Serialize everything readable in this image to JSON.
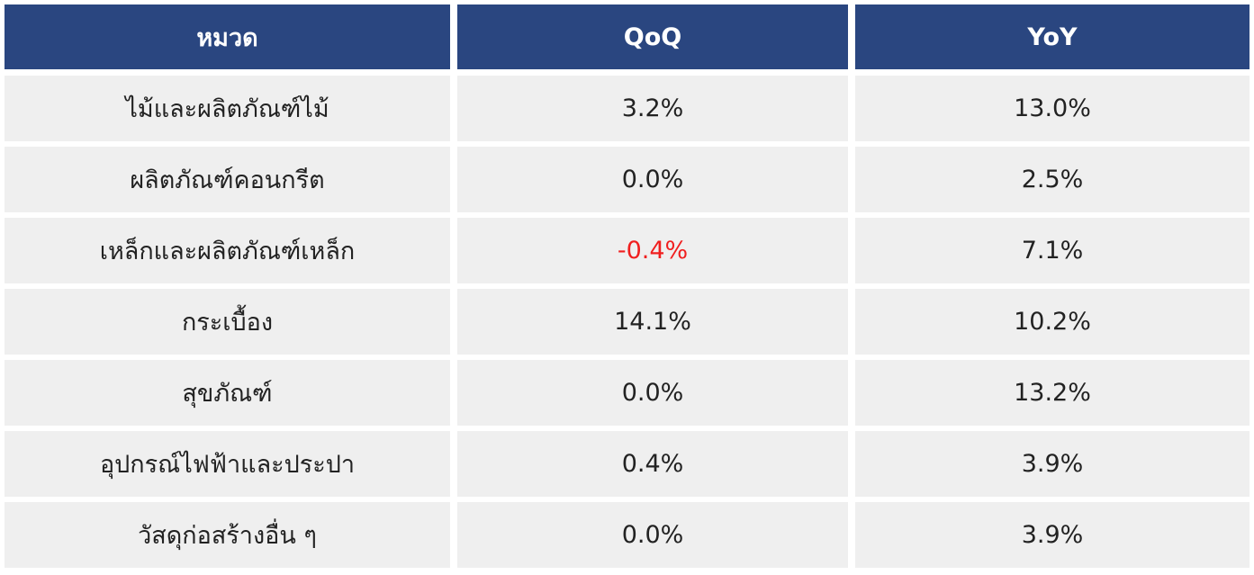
{
  "table": {
    "header": [
      "หมวด",
      "QoQ",
      "YoY"
    ],
    "rows": [
      [
        "ไม้และผลิตภัณฑ์ไม้",
        "3.2%",
        "13.0%"
      ],
      [
        "ผลิตภัณฑ์คอนกรีต",
        "0.0%",
        "2.5%"
      ],
      [
        "เหล็กและผลิตภัณฑ์เหล็ก",
        "-0.4%",
        "7.1%"
      ],
      [
        "กระเบื้อง",
        "14.1%",
        "10.2%"
      ],
      [
        "สุขภัณฑ์",
        "0.0%",
        "13.2%"
      ],
      [
        "อุปกรณ์ไฟฟ้าและประปา",
        "0.4%",
        "3.9%"
      ],
      [
        "วัสดุก่อสร้างอื่น ๆ",
        "0.0%",
        "3.9%"
      ]
    ]
  }
}
